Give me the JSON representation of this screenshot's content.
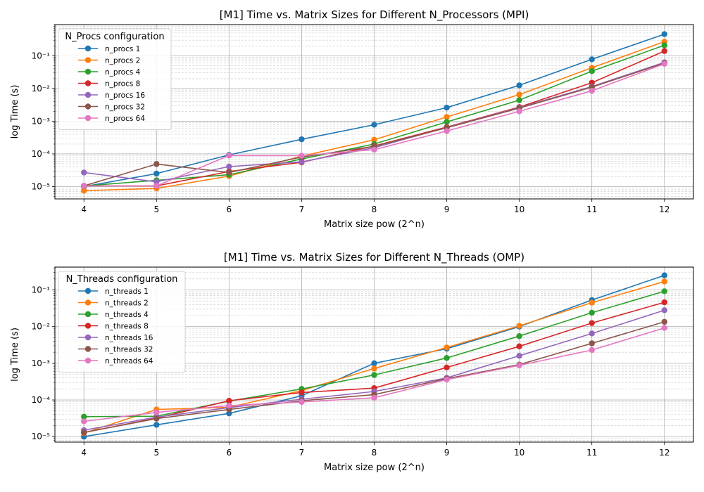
{
  "chart_data": [
    {
      "type": "line",
      "title": "[M1] Time vs. Matrix Sizes for Different N_Processors (MPI)",
      "xlabel": "Matrix size pow (2^n)",
      "ylabel": "log Time (s)",
      "yscale": "log",
      "xlim": [
        3.6,
        12.4
      ],
      "ylim": [
        4.2e-06,
        0.9
      ],
      "grid": true,
      "legend_title": "N_Procs configuration",
      "legend_position": "top-left",
      "x": [
        4,
        5,
        6,
        7,
        8,
        9,
        10,
        11,
        12
      ],
      "series": [
        {
          "name": "n_procs 1",
          "color": "#1f77b4",
          "values": [
            1e-05,
            2.5e-05,
            9.3e-05,
            0.00028,
            0.00078,
            0.0026,
            0.0125,
            0.078,
            0.46
          ]
        },
        {
          "name": "n_procs 2",
          "color": "#ff7f0e",
          "values": [
            7.5e-06,
            8.8e-06,
            2.1e-05,
            8.5e-05,
            0.00027,
            0.00135,
            0.0065,
            0.043,
            0.27
          ]
        },
        {
          "name": "n_procs 4",
          "color": "#2ca02c",
          "values": [
            1.05e-05,
            1.55e-05,
            2.3e-05,
            7e-05,
            0.0002,
            0.00095,
            0.0044,
            0.034,
            0.21
          ]
        },
        {
          "name": "n_procs 8",
          "color": "#d62728",
          "values": [
            1.05e-05,
            1.05e-05,
            2.9e-05,
            5.5e-05,
            0.000175,
            0.00066,
            0.0027,
            0.015,
            0.14
          ]
        },
        {
          "name": "n_procs 16",
          "color": "#9467bd",
          "values": [
            2.7e-05,
            1.4e-05,
            4.1e-05,
            5.7e-05,
            0.000155,
            0.00064,
            0.0026,
            0.0115,
            0.063
          ]
        },
        {
          "name": "n_procs 32",
          "color": "#8c564b",
          "values": [
            1.05e-05,
            4.9e-05,
            2.7e-05,
            8e-05,
            0.00017,
            0.00063,
            0.0025,
            0.011,
            0.06
          ]
        },
        {
          "name": "n_procs 64",
          "color": "#e377c2",
          "values": [
            1.05e-05,
            1.05e-05,
            8.9e-05,
            8.8e-05,
            0.000135,
            0.0005,
            0.002,
            0.0085,
            0.057
          ]
        }
      ]
    },
    {
      "type": "line",
      "title": "[M1] Time vs. Matrix Sizes for Different N_Threads (OMP)",
      "xlabel": "Matrix size pow (2^n)",
      "ylabel": "log Time (s)",
      "yscale": "log",
      "xlim": [
        3.6,
        12.4
      ],
      "ylim": [
        7.1e-06,
        0.42
      ],
      "grid": true,
      "legend_title": "N_Threads configuration",
      "legend_position": "top-left",
      "x": [
        4,
        5,
        6,
        7,
        8,
        9,
        10,
        11,
        12
      ],
      "series": [
        {
          "name": "n_threads 1",
          "color": "#1f77b4",
          "values": [
            1e-05,
            2.1e-05,
            4.3e-05,
            0.00013,
            0.001,
            0.0025,
            0.01,
            0.053,
            0.25
          ]
        },
        {
          "name": "n_threads 2",
          "color": "#ff7f0e",
          "values": [
            1.25e-05,
            5.5e-05,
            6.3e-05,
            0.00018,
            0.00072,
            0.0027,
            0.0105,
            0.045,
            0.17
          ]
        },
        {
          "name": "n_threads 4",
          "color": "#2ca02c",
          "values": [
            3.5e-05,
            3.6e-05,
            9.3e-05,
            0.0002,
            0.00048,
            0.0014,
            0.0055,
            0.024,
            0.092
          ]
        },
        {
          "name": "n_threads 8",
          "color": "#d62728",
          "values": [
            1.3e-05,
            3.2e-05,
            9.5e-05,
            0.00016,
            0.00021,
            0.00077,
            0.0029,
            0.0125,
            0.046
          ]
        },
        {
          "name": "n_threads 16",
          "color": "#9467bd",
          "values": [
            1.5e-05,
            3.4e-05,
            6.2e-05,
            0.000105,
            0.00017,
            0.0004,
            0.0016,
            0.0065,
            0.028
          ]
        },
        {
          "name": "n_threads 32",
          "color": "#8c564b",
          "values": [
            1.3e-05,
            3.1e-05,
            5.5e-05,
            9.5e-05,
            0.00014,
            0.00038,
            0.00092,
            0.0035,
            0.0135
          ]
        },
        {
          "name": "n_threads 64",
          "color": "#e377c2",
          "values": [
            2.6e-05,
            4.6e-05,
            7e-05,
            8.8e-05,
            0.000115,
            0.00036,
            0.00088,
            0.0023,
            0.0092
          ]
        }
      ]
    }
  ]
}
